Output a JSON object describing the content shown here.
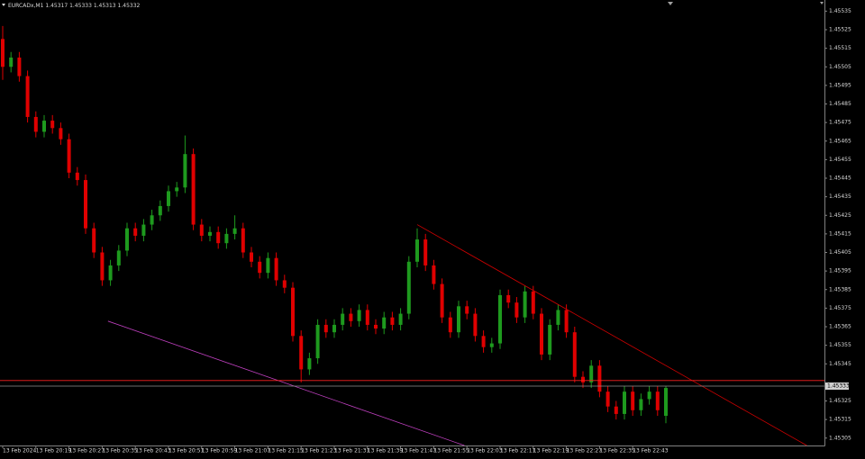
{
  "chart_data": {
    "type": "candlestick",
    "symbol": "EURCADx,M1",
    "xlim": [
      0,
      99.1
    ],
    "ylim": [
      1.45301,
      1.45541
    ],
    "yticks": [
      1.45535,
      1.45525,
      1.45515,
      1.45505,
      1.45495,
      1.45485,
      1.45475,
      1.45465,
      1.45455,
      1.45445,
      1.45435,
      1.45425,
      1.45415,
      1.45405,
      1.45395,
      1.45385,
      1.45375,
      1.45365,
      1.45355,
      1.45345,
      1.45325,
      1.45315,
      1.45305
    ],
    "xticks": [
      {
        "value": 0,
        "label": "13 Feb 2024"
      },
      {
        "value": 4,
        "label": "13 Feb 20:19"
      },
      {
        "value": 8,
        "label": "13 Feb 20:27"
      },
      {
        "value": 12,
        "label": "13 Feb 20:35"
      },
      {
        "value": 16,
        "label": "13 Feb 20:43"
      },
      {
        "value": 20,
        "label": "13 Feb 20:51"
      },
      {
        "value": 24,
        "label": "13 Feb 20:59"
      },
      {
        "value": 28,
        "label": "13 Feb 21:07"
      },
      {
        "value": 32,
        "label": "13 Feb 21:15"
      },
      {
        "value": 36,
        "label": "13 Feb 21:23"
      },
      {
        "value": 40,
        "label": "13 Feb 21:31"
      },
      {
        "value": 44,
        "label": "13 Feb 21:39"
      },
      {
        "value": 48,
        "label": "13 Feb 21:47"
      },
      {
        "value": 52,
        "label": "13 Feb 21:55"
      },
      {
        "value": 56,
        "label": "13 Feb 22:03"
      },
      {
        "value": 60,
        "label": "13 Feb 22:11"
      },
      {
        "value": 64,
        "label": "13 Feb 22:19"
      },
      {
        "value": 68,
        "label": "13 Feb 22:27"
      },
      {
        "value": 72,
        "label": "13 Feb 22:35"
      },
      {
        "value": 76,
        "label": "13 Feb 22:43"
      }
    ],
    "bull_color": "#1e9a1e",
    "bear_color": "#e00000",
    "open": [
      1.4552,
      1.45505,
      1.4551,
      1.455,
      1.45478,
      1.4547,
      1.45476,
      1.45472,
      1.45466,
      1.45448,
      1.45444,
      1.45418,
      1.45405,
      1.4539,
      1.45398,
      1.45406,
      1.45418,
      1.45414,
      1.4542,
      1.45425,
      1.4543,
      1.45438,
      1.4544,
      1.45458,
      1.4542,
      1.45414,
      1.45416,
      1.4541,
      1.45415,
      1.45418,
      1.45405,
      1.454,
      1.45394,
      1.45402,
      1.4539,
      1.45386,
      1.4536,
      1.45342,
      1.45348,
      1.45366,
      1.45362,
      1.45366,
      1.45372,
      1.45368,
      1.45374,
      1.45366,
      1.45364,
      1.4537,
      1.45366,
      1.45372,
      1.454,
      1.45412,
      1.45398,
      1.45388,
      1.4537,
      1.45362,
      1.45376,
      1.45372,
      1.4536,
      1.45354,
      1.45356,
      1.45382,
      1.45378,
      1.4537,
      1.45384,
      1.45372,
      1.4535,
      1.45366,
      1.45374,
      1.45362,
      1.45338,
      1.45335,
      1.45344,
      1.4533,
      1.45322,
      1.45318,
      1.4533,
      1.4532,
      1.45326,
      1.4533,
      1.45317
    ],
    "high": [
      1.45527,
      1.45513,
      1.45513,
      1.45503,
      1.45481,
      1.45479,
      1.45479,
      1.45475,
      1.45469,
      1.45451,
      1.45447,
      1.45421,
      1.45408,
      1.45401,
      1.45409,
      1.45421,
      1.45421,
      1.45423,
      1.45428,
      1.45433,
      1.45441,
      1.45443,
      1.45468,
      1.45461,
      1.45423,
      1.45419,
      1.45419,
      1.45418,
      1.45425,
      1.45421,
      1.45408,
      1.45403,
      1.45405,
      1.45405,
      1.45393,
      1.45389,
      1.45363,
      1.45351,
      1.45369,
      1.45369,
      1.45369,
      1.45375,
      1.45375,
      1.45377,
      1.45377,
      1.45369,
      1.45373,
      1.45373,
      1.45375,
      1.45403,
      1.45418,
      1.45415,
      1.45401,
      1.45391,
      1.45373,
      1.45379,
      1.45379,
      1.45375,
      1.45363,
      1.45359,
      1.45385,
      1.45385,
      1.45381,
      1.45387,
      1.45387,
      1.45375,
      1.45369,
      1.45377,
      1.45377,
      1.45365,
      1.45341,
      1.45347,
      1.45347,
      1.45333,
      1.45325,
      1.45333,
      1.45333,
      1.45329,
      1.45333,
      1.45333,
      1.45333
    ],
    "low": [
      1.45498,
      1.45502,
      1.45497,
      1.45475,
      1.45467,
      1.45467,
      1.45469,
      1.45463,
      1.45445,
      1.45441,
      1.45415,
      1.45402,
      1.45387,
      1.45387,
      1.45395,
      1.45403,
      1.45411,
      1.45411,
      1.45417,
      1.45422,
      1.45427,
      1.45435,
      1.45437,
      1.45417,
      1.45411,
      1.45411,
      1.45407,
      1.45407,
      1.45412,
      1.45402,
      1.45397,
      1.45391,
      1.45391,
      1.45387,
      1.45383,
      1.45357,
      1.45335,
      1.45339,
      1.45345,
      1.45359,
      1.45359,
      1.45363,
      1.45365,
      1.45365,
      1.45363,
      1.45361,
      1.45361,
      1.45363,
      1.45363,
      1.45369,
      1.45397,
      1.45395,
      1.45385,
      1.45367,
      1.45359,
      1.45359,
      1.45369,
      1.45357,
      1.45351,
      1.45351,
      1.45353,
      1.45375,
      1.45367,
      1.45367,
      1.45369,
      1.45347,
      1.45347,
      1.45363,
      1.45359,
      1.45335,
      1.45332,
      1.45332,
      1.45327,
      1.45319,
      1.45315,
      1.45315,
      1.45317,
      1.45317,
      1.45323,
      1.45317,
      1.45313
    ],
    "close": [
      1.45505,
      1.4551,
      1.455,
      1.45478,
      1.4547,
      1.45476,
      1.45472,
      1.45466,
      1.45448,
      1.45444,
      1.45418,
      1.45405,
      1.4539,
      1.45398,
      1.45406,
      1.45418,
      1.45414,
      1.4542,
      1.45425,
      1.4543,
      1.45438,
      1.4544,
      1.45458,
      1.4542,
      1.45414,
      1.45416,
      1.4541,
      1.45415,
      1.45418,
      1.45405,
      1.454,
      1.45394,
      1.45402,
      1.4539,
      1.45386,
      1.4536,
      1.45342,
      1.45348,
      1.45366,
      1.45362,
      1.45366,
      1.45372,
      1.45368,
      1.45374,
      1.45366,
      1.45364,
      1.4537,
      1.45366,
      1.45372,
      1.454,
      1.45412,
      1.45398,
      1.45388,
      1.4537,
      1.45362,
      1.45376,
      1.45372,
      1.4536,
      1.45354,
      1.45356,
      1.45382,
      1.45378,
      1.4537,
      1.45384,
      1.45372,
      1.4535,
      1.45366,
      1.45374,
      1.45362,
      1.45338,
      1.45335,
      1.45344,
      1.4533,
      1.45322,
      1.45318,
      1.4533,
      1.4532,
      1.45326,
      1.4533,
      1.4532,
      1.45332
    ],
    "trendlines": [
      {
        "color": "#d00000",
        "x": [
          50,
          97
        ],
        "y": [
          1.4542,
          1.45301
        ]
      },
      {
        "color": "#c040c0",
        "x": [
          12.7,
          55.7
        ],
        "y": [
          1.45368,
          1.45301
        ]
      }
    ],
    "ask": {
      "value": 1.45336,
      "color": "#ff2020"
    },
    "bid": {
      "value": 1.45333,
      "color": "#909090"
    }
  }
}
